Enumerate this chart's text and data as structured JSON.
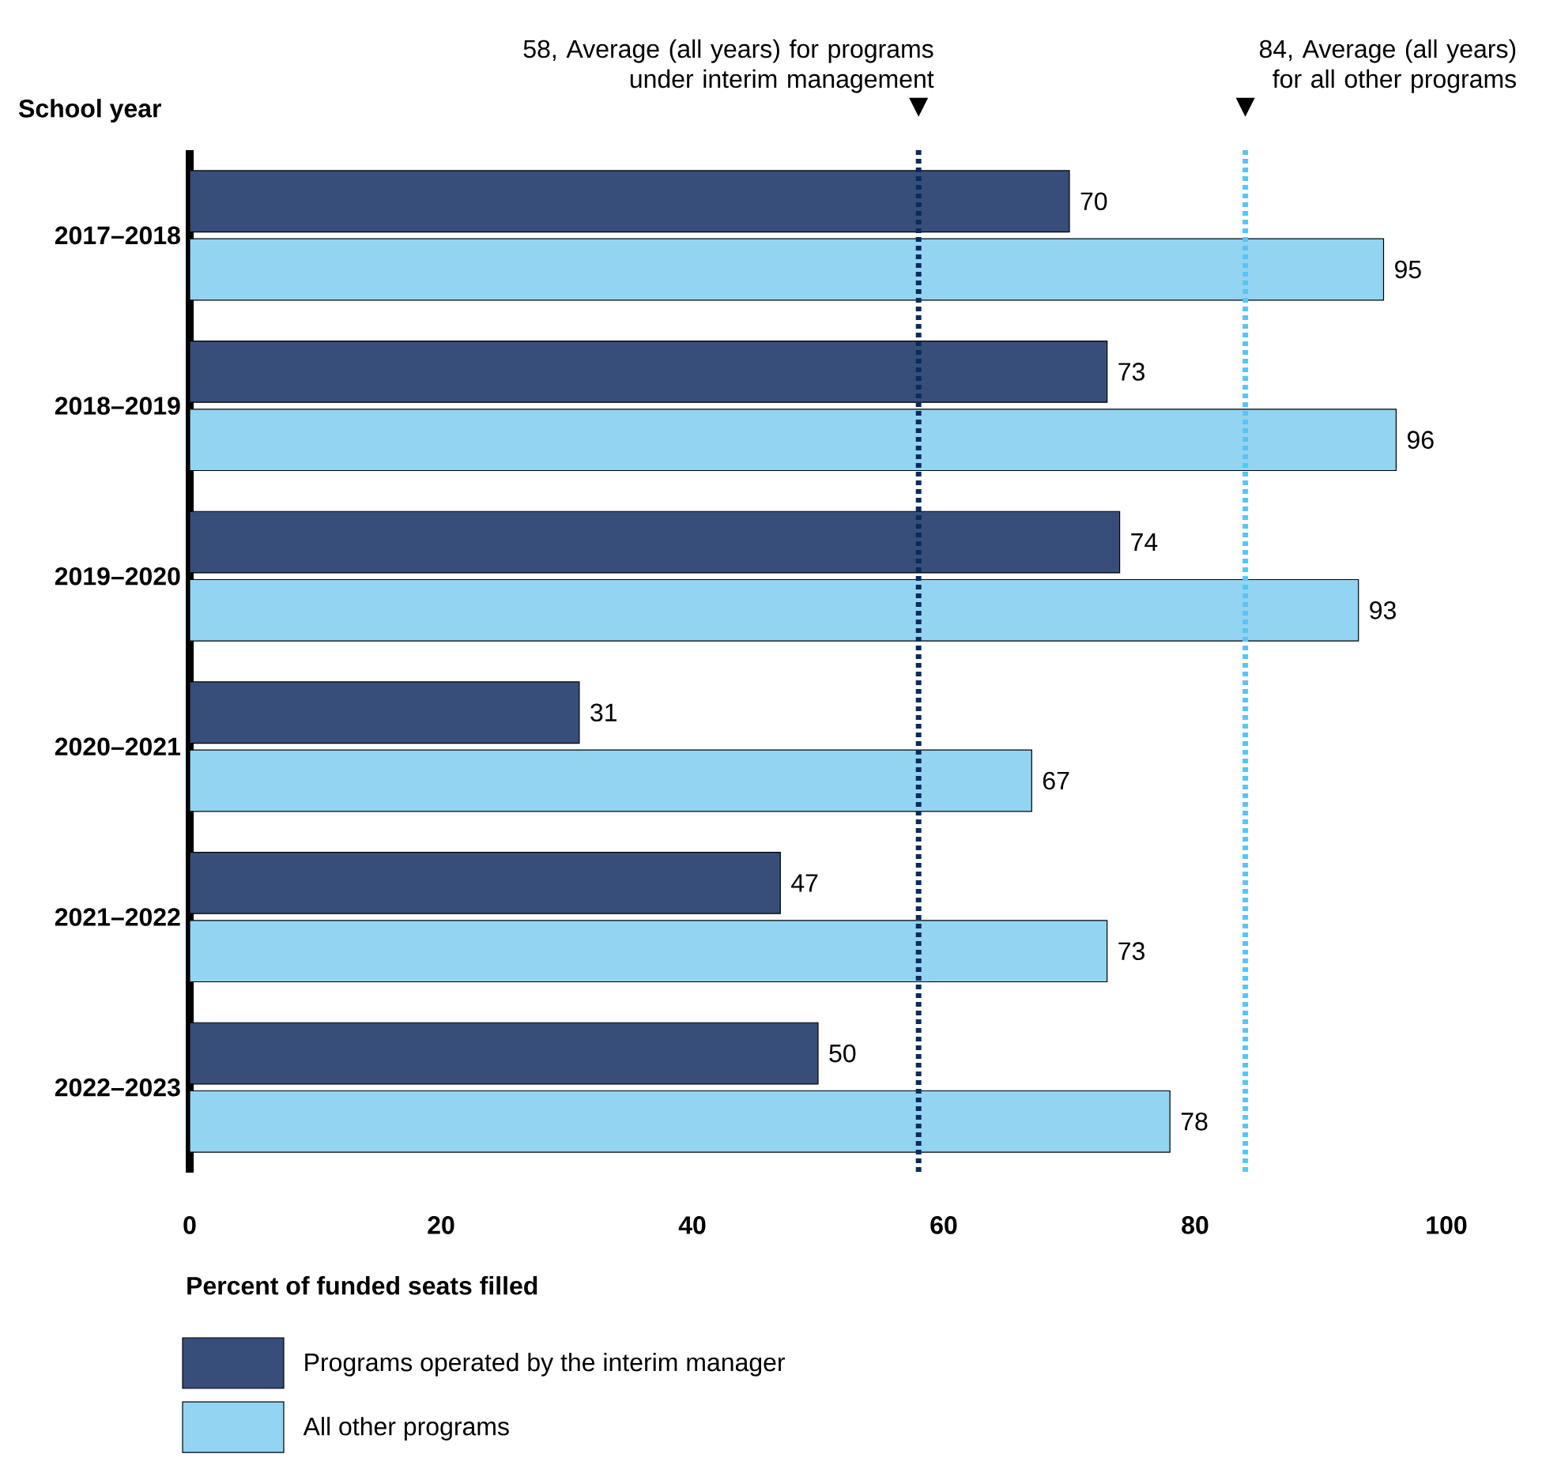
{
  "chart_data": {
    "type": "bar",
    "orientation": "horizontal",
    "categories": [
      "2017–2018",
      "2018–2019",
      "2019–2020",
      "2020–2021",
      "2021–2022",
      "2022–2023"
    ],
    "series": [
      {
        "name": "Programs operated by the interim manager",
        "color": "#374e7a",
        "values": [
          70,
          73,
          74,
          31,
          47,
          50
        ]
      },
      {
        "name": "All other programs",
        "color": "#93d4f2",
        "values": [
          95,
          96,
          93,
          67,
          73,
          78
        ]
      }
    ],
    "xlim": [
      0,
      100
    ],
    "xticks": [
      0,
      20,
      40,
      60,
      80,
      100
    ],
    "xlabel": "Percent of funded seats filled",
    "ylabel": "School year",
    "ref_lines": [
      {
        "axis": "x",
        "value": 58,
        "label": "58, Average (all years) for programs under interim management",
        "color": "#0b2b5c",
        "line_style": "dotted"
      },
      {
        "axis": "x",
        "value": 84,
        "label": "84, Average (all years) for all other programs",
        "color": "#5cc3f5",
        "line_style": "dotted"
      }
    ],
    "data_labels": true,
    "legend": "bottom",
    "grid": false
  }
}
